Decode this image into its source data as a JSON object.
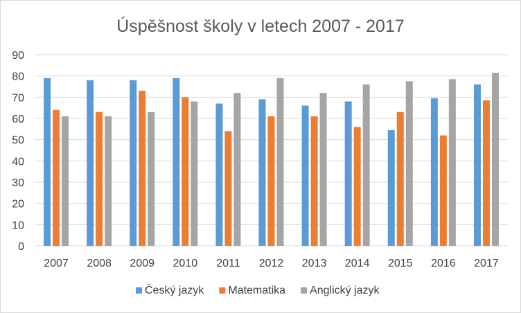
{
  "chart_data": {
    "type": "bar",
    "title": "Úspěšnost školy v letech 2007 - 2017",
    "xlabel": "",
    "ylabel": "",
    "categories": [
      "2007",
      "2008",
      "2009",
      "2010",
      "2011",
      "2012",
      "2013",
      "2014",
      "2015",
      "2016",
      "2017"
    ],
    "series": [
      {
        "name": "Český jazyk",
        "color": "#5b9bd5",
        "values": [
          79,
          78,
          78,
          79,
          67,
          69,
          66,
          68,
          54.5,
          69.5,
          76
        ]
      },
      {
        "name": "Matematika",
        "color": "#ed7d31",
        "values": [
          64,
          63,
          73,
          70,
          54,
          61,
          61,
          56,
          63,
          52,
          68.5
        ]
      },
      {
        "name": "Anglický jazyk",
        "color": "#a5a5a5",
        "values": [
          61,
          61,
          63,
          68,
          72,
          79,
          72,
          76,
          77.5,
          78.5,
          81.5
        ]
      }
    ],
    "ylim": [
      0,
      90
    ],
    "yticks": [
      "0",
      "10",
      "20",
      "30",
      "40",
      "50",
      "60",
      "70",
      "80",
      "90"
    ],
    "grid": true,
    "legend": "bottom"
  }
}
